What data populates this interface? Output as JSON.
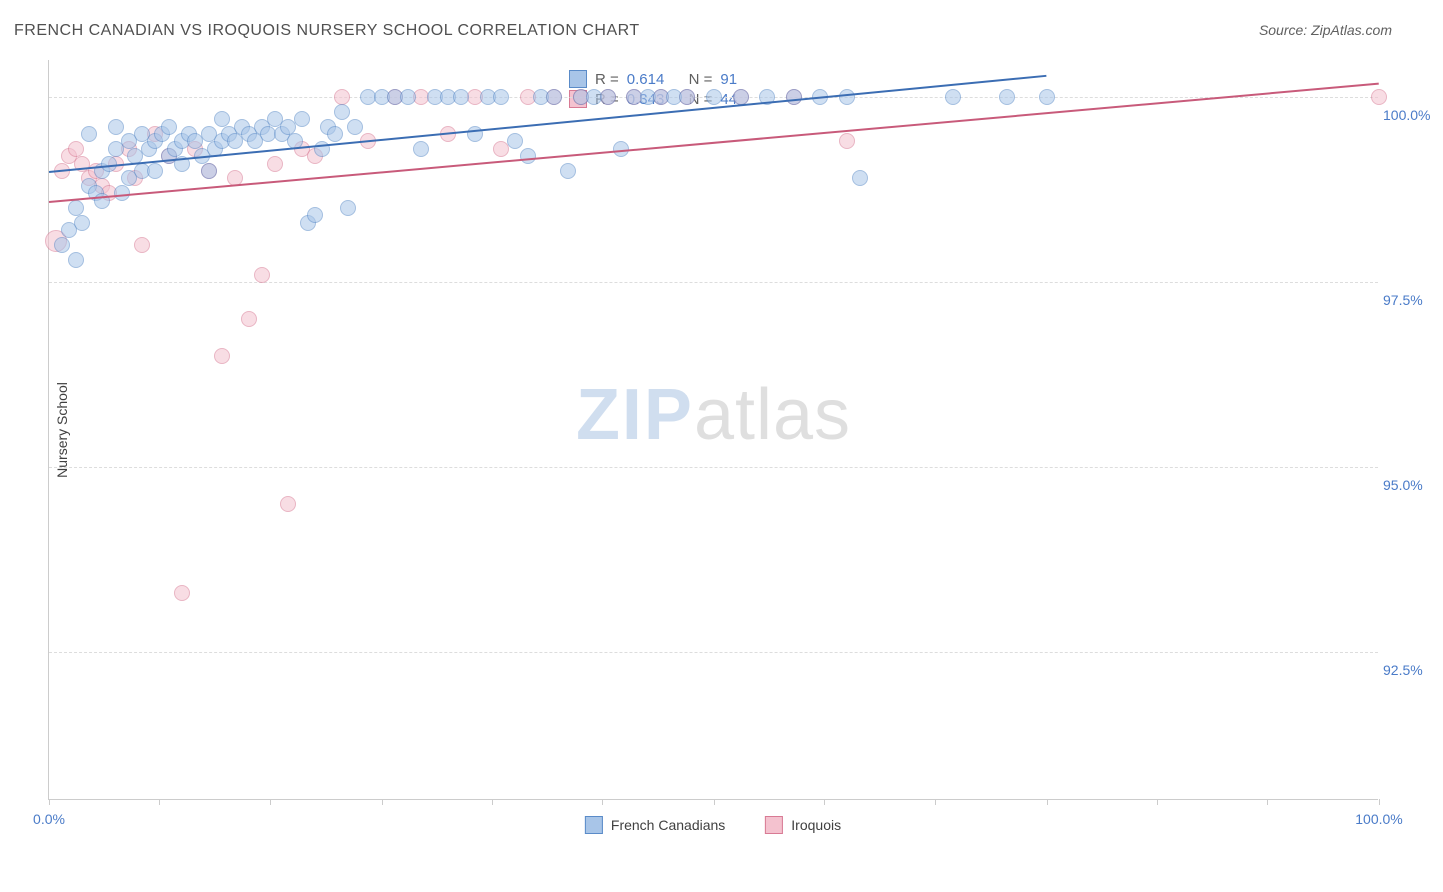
{
  "header": {
    "title": "FRENCH CANADIAN VS IROQUOIS NURSERY SCHOOL CORRELATION CHART",
    "source": "Source: ZipAtlas.com"
  },
  "chart": {
    "type": "scatter",
    "ylabel": "Nursery School",
    "xlim": [
      0,
      100
    ],
    "ylim": [
      90.5,
      100.5
    ],
    "xtick_positions": [
      0,
      8.3,
      16.6,
      25,
      33.3,
      41.6,
      50,
      58.3,
      66.6,
      75,
      83.3,
      91.6,
      100
    ],
    "xtick_labels": {
      "0": "0.0%",
      "100": "100.0%"
    },
    "ytick_positions": [
      92.5,
      95.0,
      97.5,
      100.0
    ],
    "ytick_labels": [
      "92.5%",
      "95.0%",
      "97.5%",
      "100.0%"
    ],
    "grid_color": "#dddddd",
    "background_color": "#ffffff",
    "axis_color": "#cccccc",
    "tick_label_color": "#4a7bc8",
    "marker_radius": 8,
    "marker_opacity": 0.55,
    "watermark": {
      "zip": "ZIP",
      "atlas": "atlas"
    },
    "series": [
      {
        "name": "French Canadians",
        "fill_color": "#a8c5e8",
        "stroke_color": "#5a8bc8",
        "line_color": "#3b6db3",
        "R": "0.614",
        "N": "91",
        "regression": {
          "x1": 0,
          "y1": 99.0,
          "x2": 75,
          "y2": 100.3
        },
        "points": [
          [
            1,
            98.0
          ],
          [
            1.5,
            98.2
          ],
          [
            2,
            98.5
          ],
          [
            2,
            97.8
          ],
          [
            2.5,
            98.3
          ],
          [
            3,
            99.5
          ],
          [
            3,
            98.8
          ],
          [
            3.5,
            98.7
          ],
          [
            4,
            99.0
          ],
          [
            4,
            98.6
          ],
          [
            4.5,
            99.1
          ],
          [
            5,
            99.3
          ],
          [
            5,
            99.6
          ],
          [
            5.5,
            98.7
          ],
          [
            6,
            99.4
          ],
          [
            6,
            98.9
          ],
          [
            6.5,
            99.2
          ],
          [
            7,
            99.0
          ],
          [
            7,
            99.5
          ],
          [
            7.5,
            99.3
          ],
          [
            8,
            99.4
          ],
          [
            8,
            99.0
          ],
          [
            8.5,
            99.5
          ],
          [
            9,
            99.2
          ],
          [
            9,
            99.6
          ],
          [
            9.5,
            99.3
          ],
          [
            10,
            99.4
          ],
          [
            10,
            99.1
          ],
          [
            10.5,
            99.5
          ],
          [
            11,
            99.4
          ],
          [
            11.5,
            99.2
          ],
          [
            12,
            99.5
          ],
          [
            12,
            99.0
          ],
          [
            12.5,
            99.3
          ],
          [
            13,
            99.4
          ],
          [
            13,
            99.7
          ],
          [
            13.5,
            99.5
          ],
          [
            14,
            99.4
          ],
          [
            14.5,
            99.6
          ],
          [
            15,
            99.5
          ],
          [
            15.5,
            99.4
          ],
          [
            16,
            99.6
          ],
          [
            16.5,
            99.5
          ],
          [
            17,
            99.7
          ],
          [
            17.5,
            99.5
          ],
          [
            18,
            99.6
          ],
          [
            18.5,
            99.4
          ],
          [
            19,
            99.7
          ],
          [
            19.5,
            98.3
          ],
          [
            20,
            98.4
          ],
          [
            20.5,
            99.3
          ],
          [
            21,
            99.6
          ],
          [
            21.5,
            99.5
          ],
          [
            22,
            99.8
          ],
          [
            22.5,
            98.5
          ],
          [
            23,
            99.6
          ],
          [
            24,
            100.0
          ],
          [
            25,
            100.0
          ],
          [
            26,
            100.0
          ],
          [
            27,
            100.0
          ],
          [
            28,
            99.3
          ],
          [
            29,
            100.0
          ],
          [
            30,
            100.0
          ],
          [
            31,
            100.0
          ],
          [
            32,
            99.5
          ],
          [
            33,
            100.0
          ],
          [
            34,
            100.0
          ],
          [
            35,
            99.4
          ],
          [
            36,
            99.2
          ],
          [
            37,
            100.0
          ],
          [
            38,
            100.0
          ],
          [
            39,
            99.0
          ],
          [
            40,
            100.0
          ],
          [
            41,
            100.0
          ],
          [
            42,
            100.0
          ],
          [
            43,
            99.3
          ],
          [
            44,
            100.0
          ],
          [
            45,
            100.0
          ],
          [
            46,
            100.0
          ],
          [
            47,
            100.0
          ],
          [
            48,
            100.0
          ],
          [
            50,
            100.0
          ],
          [
            52,
            100.0
          ],
          [
            54,
            100.0
          ],
          [
            56,
            100.0
          ],
          [
            58,
            100.0
          ],
          [
            60,
            100.0
          ],
          [
            61,
            98.9
          ],
          [
            68,
            100.0
          ],
          [
            72,
            100.0
          ],
          [
            75,
            100.0
          ]
        ]
      },
      {
        "name": "Iroquois",
        "fill_color": "#f4c2cf",
        "stroke_color": "#d87a94",
        "line_color": "#c85a7a",
        "R": "0.343",
        "N": "44",
        "regression": {
          "x1": 0,
          "y1": 98.6,
          "x2": 100,
          "y2": 100.2
        },
        "points": [
          [
            0.5,
            98.05
          ],
          [
            1,
            99.0
          ],
          [
            1.5,
            99.2
          ],
          [
            2,
            99.3
          ],
          [
            2.5,
            99.1
          ],
          [
            3,
            98.9
          ],
          [
            3.5,
            99.0
          ],
          [
            4,
            98.8
          ],
          [
            4.5,
            98.7
          ],
          [
            5,
            99.1
          ],
          [
            6,
            99.3
          ],
          [
            6.5,
            98.9
          ],
          [
            7,
            98.0
          ],
          [
            8,
            99.5
          ],
          [
            9,
            99.2
          ],
          [
            10,
            93.3
          ],
          [
            11,
            99.3
          ],
          [
            12,
            99.0
          ],
          [
            13,
            96.5
          ],
          [
            14,
            98.9
          ],
          [
            15,
            97.0
          ],
          [
            16,
            97.6
          ],
          [
            17,
            99.1
          ],
          [
            18,
            94.5
          ],
          [
            19,
            99.3
          ],
          [
            20,
            99.2
          ],
          [
            22,
            100.0
          ],
          [
            24,
            99.4
          ],
          [
            26,
            100.0
          ],
          [
            28,
            100.0
          ],
          [
            30,
            99.5
          ],
          [
            32,
            100.0
          ],
          [
            34,
            99.3
          ],
          [
            36,
            100.0
          ],
          [
            38,
            100.0
          ],
          [
            40,
            100.0
          ],
          [
            42,
            100.0
          ],
          [
            44,
            100.0
          ],
          [
            46,
            100.0
          ],
          [
            48,
            100.0
          ],
          [
            52,
            100.0
          ],
          [
            56,
            100.0
          ],
          [
            60,
            99.4
          ],
          [
            100,
            100.0
          ]
        ]
      }
    ],
    "legend_bottom": [
      {
        "label": "French Canadians",
        "fill": "#a8c5e8",
        "stroke": "#5a8bc8"
      },
      {
        "label": "Iroquois",
        "fill": "#f4c2cf",
        "stroke": "#d87a94"
      }
    ]
  }
}
